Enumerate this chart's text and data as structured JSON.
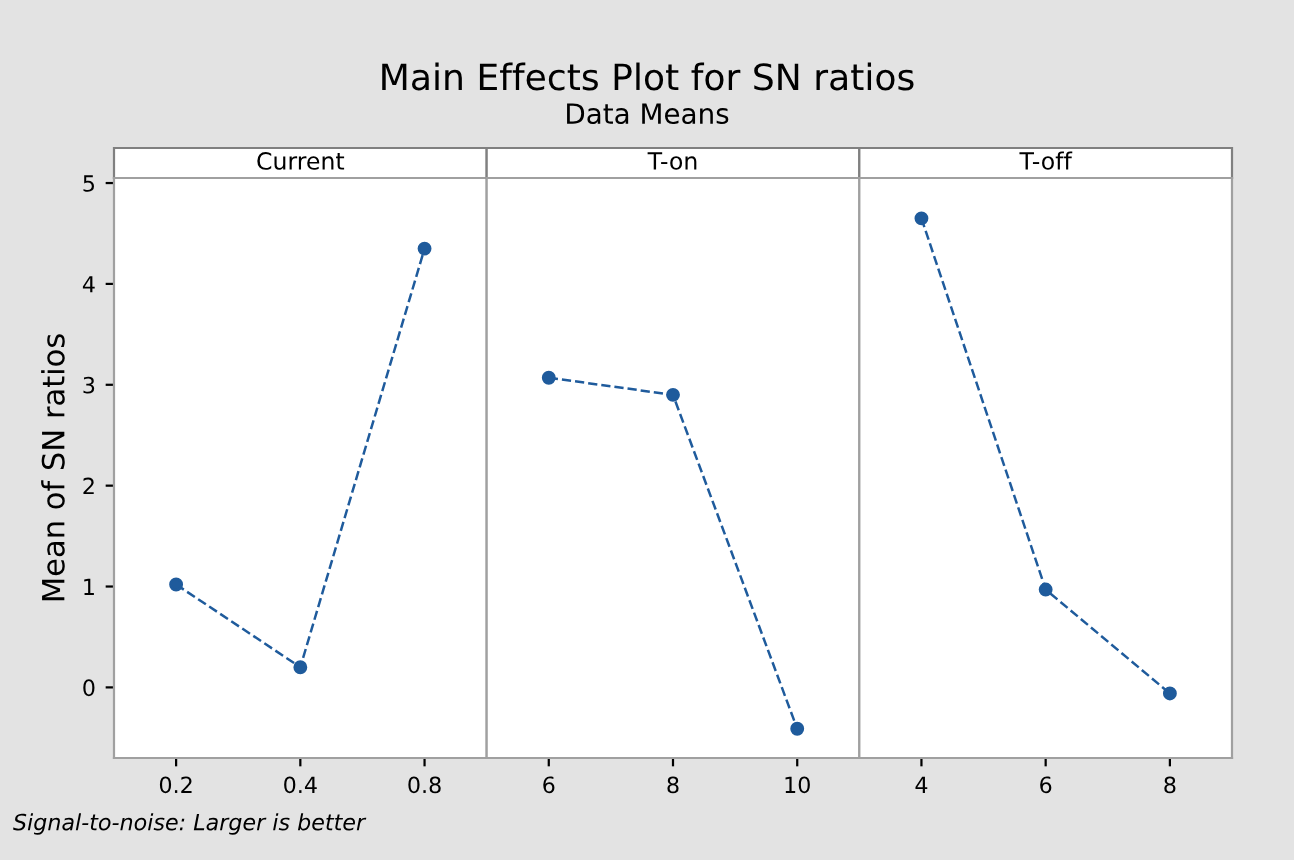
{
  "chart_data": [
    {
      "type": "line",
      "title": "Current",
      "ylabel": "Mean of SN ratios",
      "categories": [
        "0.2",
        "0.4",
        "0.8"
      ],
      "series": [
        {
          "color": "#1f5b9c",
          "values": [
            1.02,
            0.2,
            4.35
          ]
        }
      ],
      "ylim": [
        -0.7,
        5.05
      ],
      "yticks": [
        0,
        1,
        2,
        3,
        4,
        5
      ],
      "marker": "circle",
      "line_style": "dashed",
      "grid": false,
      "legend": false,
      "annotations": [
        "Main Effects Plot for SN ratios",
        "Data Means",
        "Signal-to-noise: Larger is better"
      ]
    },
    {
      "type": "line",
      "title": "T-on",
      "categories": [
        "6",
        "8",
        "10"
      ],
      "series": [
        {
          "color": "#1f5b9c",
          "values": [
            3.07,
            2.9,
            -0.41
          ]
        }
      ],
      "ylim": [
        -0.7,
        5.05
      ],
      "tick_labels": "x",
      "marker": "circle",
      "line_style": "dashed",
      "grid": false,
      "legend": false
    },
    {
      "type": "line",
      "title": "T-off",
      "categories": [
        "4",
        "6",
        "8"
      ],
      "series": [
        {
          "color": "#1f5b9c",
          "values": [
            4.65,
            0.97,
            -0.06
          ]
        }
      ],
      "ylim": [
        -0.7,
        5.05
      ],
      "tick_labels": "x",
      "marker": "circle",
      "line_style": "dashed",
      "grid": false,
      "legend": false
    }
  ]
}
